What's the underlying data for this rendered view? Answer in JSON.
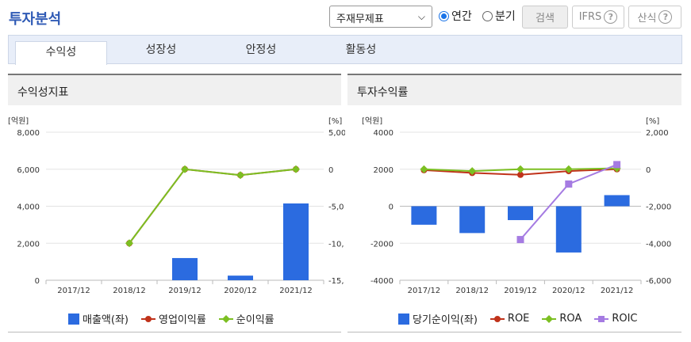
{
  "header": {
    "title": "투자분석"
  },
  "controls": {
    "select_value": "주재무제표",
    "radio_annual": "연간",
    "radio_quarter": "분기",
    "search_label": "검색",
    "ifrs_label": "IFRS",
    "formula_label": "산식",
    "help_symbol": "?"
  },
  "tabs": [
    "수익성",
    "성장성",
    "안정성",
    "활동성"
  ],
  "panels": {
    "left_title": "수익성지표",
    "right_title": "투자수익률"
  },
  "colors": {
    "bar": "#2b6be0",
    "red": "#c0321a",
    "green": "#7cbf22",
    "purple": "#a57be2"
  },
  "chart_data": [
    {
      "type": "bar",
      "categories": [
        "2017/12",
        "2018/12",
        "2019/12",
        "2020/12",
        "2021/12"
      ],
      "left_unit": "[억원]",
      "right_unit": "[%]",
      "left_ticks": [
        "8,000",
        "6,000",
        "4,000",
        "2,000",
        "0"
      ],
      "right_ticks": [
        "5,00",
        "0",
        "-5,0",
        "-10,",
        "-15,"
      ],
      "ylim_left": [
        0,
        8000
      ],
      "ylim_right": [
        -15000,
        5000
      ],
      "bars": {
        "name": "매출액(좌)",
        "values": [
          null,
          null,
          1200,
          250,
          4150
        ]
      },
      "lines": [
        {
          "name": "영업이익률",
          "color": "#c0321a",
          "values": [
            null,
            -10000,
            0,
            -800,
            0
          ]
        },
        {
          "name": "순이익률",
          "color": "#7cbf22",
          "values": [
            null,
            -10000,
            0,
            -800,
            0
          ]
        }
      ]
    },
    {
      "type": "bar",
      "categories": [
        "2017/12",
        "2018/12",
        "2019/12",
        "2020/12",
        "2021/12"
      ],
      "left_unit": "[억원]",
      "right_unit": "[%]",
      "left_ticks": [
        "4000",
        "2000",
        "0",
        "-2000",
        "-4000"
      ],
      "right_ticks": [
        "2,000",
        "0",
        "-2,000",
        "-4,000",
        "-6,000"
      ],
      "ylim_left": [
        -4000,
        4000
      ],
      "ylim_right": [
        -6000,
        2000
      ],
      "bars": {
        "name": "당기순이익(좌)",
        "values": [
          -1000,
          -1450,
          -750,
          -2500,
          600
        ]
      },
      "lines": [
        {
          "name": "ROE",
          "color": "#c0321a",
          "values": [
            -50,
            -200,
            -300,
            -100,
            0
          ]
        },
        {
          "name": "ROA",
          "color": "#7cbf22",
          "values": [
            0,
            -100,
            0,
            0,
            50
          ]
        },
        {
          "name": "ROIC",
          "color": "#a57be2",
          "values": [
            null,
            null,
            -3800,
            -800,
            250
          ]
        }
      ]
    }
  ]
}
